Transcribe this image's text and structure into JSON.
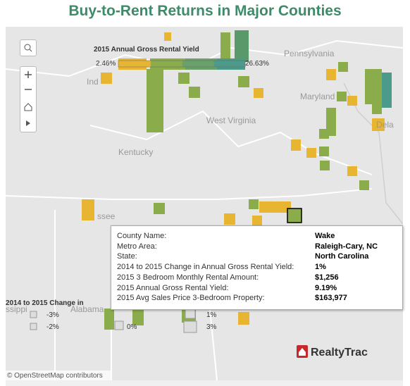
{
  "header": {
    "title": "Buy-to-Rent Returns in Major Counties"
  },
  "yield_legend": {
    "title": "2015 Annual Gross Rental Yield",
    "min": "2.46%",
    "max": "26.63%"
  },
  "map_labels": [
    "Pennsylvania",
    "Ind",
    "Maryland",
    "West Virginia",
    "Dela",
    "Kentucky",
    "ssee",
    "ssippi",
    "Alabama"
  ],
  "tooltip": {
    "rows": [
      {
        "label": "County Name:",
        "value": "Wake"
      },
      {
        "label": "Metro Area:",
        "value": "Raleigh-Cary, NC"
      },
      {
        "label": "State:",
        "value": "North Carolina"
      },
      {
        "label": "2014 to 2015 Change in Annual Gross Rental Yield:",
        "value": "1%"
      },
      {
        "label": "2015 3 Bedroom Monthly Rental Amount:",
        "value": "$1,256"
      },
      {
        "label": "2015 Annual Gross Rental Yield:",
        "value": "9.19%"
      },
      {
        "label": "2015 Avg Sales Price 3-Bedroom Property:",
        "value": "$163,977"
      }
    ]
  },
  "change_legend": {
    "title": "2014 to 2015 Change in",
    "items": [
      "-3%",
      "-2%",
      "0%",
      "1%",
      "3%"
    ]
  },
  "attribution": "© OpenStreetMap contributors",
  "logo": "RealtyTrac"
}
